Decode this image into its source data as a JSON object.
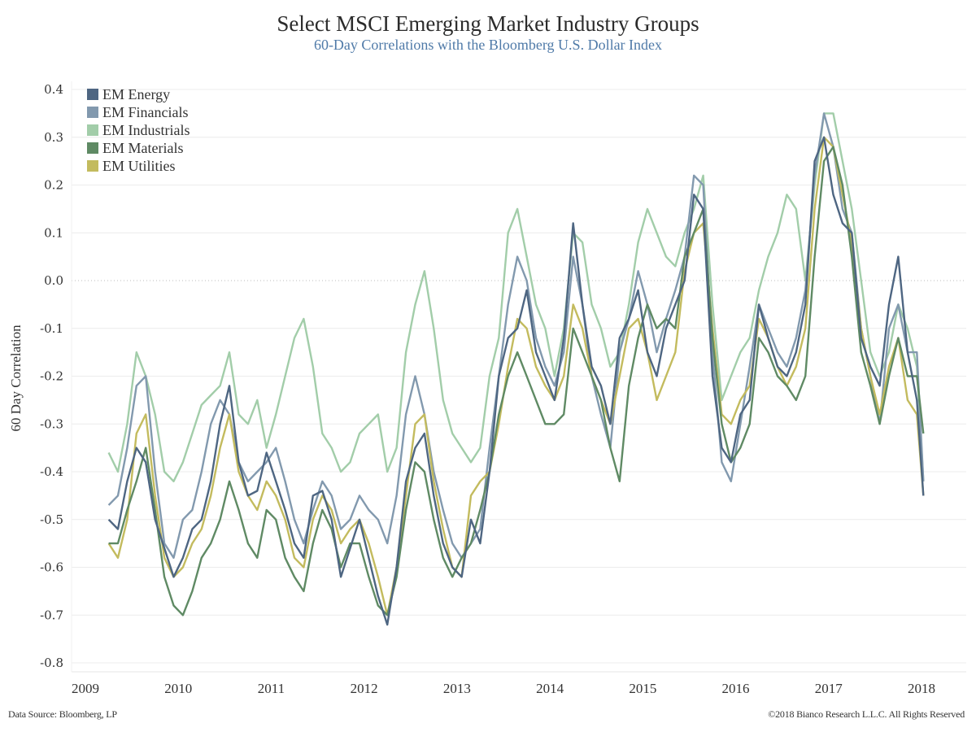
{
  "header": {
    "title": "Select MSCI Emerging Market Industry Groups",
    "subtitle": "60-Day Correlations with the Bloomberg U.S. Dollar Index"
  },
  "footer": {
    "source": "Data Source: Bloomberg, LP",
    "copyright": "©2018 Bianco Research L.L.C. All Rights Reserved"
  },
  "chart_data": {
    "type": "line",
    "title": "Select MSCI Emerging Market Industry Groups",
    "subtitle": "60-Day Correlations with the Bloomberg U.S. Dollar Index",
    "xlabel": "",
    "ylabel": "60 Day Correlation",
    "xlim": [
      2008.9,
      2018.3
    ],
    "ylim": [
      -0.82,
      0.42
    ],
    "x_ticks": [
      2009,
      2010,
      2011,
      2012,
      2013,
      2014,
      2015,
      2016,
      2017,
      2018
    ],
    "x_tick_labels": [
      "2009",
      "2010",
      "2011",
      "2012",
      "2013",
      "2014",
      "2015",
      "2016",
      "2017",
      "2018"
    ],
    "y_ticks": [
      0.4,
      0.3,
      0.2,
      0.1,
      0.0,
      -0.1,
      -0.2,
      -0.3,
      -0.4,
      -0.5,
      -0.6,
      -0.7,
      -0.8
    ],
    "y_tick_labels": [
      "0.4",
      "0.3",
      "0.2",
      "0.1",
      "0.0",
      "-0.1",
      "-0.2",
      "-0.3",
      "-0.4",
      "-0.5",
      "-0.6",
      "-0.7",
      "-0.8"
    ],
    "grid": true,
    "zero_line": "dotted",
    "legend_position": "top-left",
    "x": [
      2009.25,
      2009.35,
      2009.45,
      2009.55,
      2009.65,
      2009.75,
      2009.85,
      2009.95,
      2010.05,
      2010.15,
      2010.25,
      2010.35,
      2010.45,
      2010.55,
      2010.65,
      2010.75,
      2010.85,
      2010.95,
      2011.05,
      2011.15,
      2011.25,
      2011.35,
      2011.45,
      2011.55,
      2011.65,
      2011.75,
      2011.85,
      2011.95,
      2012.05,
      2012.15,
      2012.25,
      2012.35,
      2012.45,
      2012.55,
      2012.65,
      2012.75,
      2012.85,
      2012.95,
      2013.05,
      2013.15,
      2013.25,
      2013.35,
      2013.45,
      2013.55,
      2013.65,
      2013.75,
      2013.85,
      2013.95,
      2014.05,
      2014.15,
      2014.25,
      2014.35,
      2014.45,
      2014.55,
      2014.65,
      2014.75,
      2014.85,
      2014.95,
      2015.05,
      2015.15,
      2015.25,
      2015.35,
      2015.45,
      2015.55,
      2015.65,
      2015.75,
      2015.85,
      2015.95,
      2016.05,
      2016.15,
      2016.25,
      2016.35,
      2016.45,
      2016.55,
      2016.65,
      2016.75,
      2016.85,
      2016.95,
      2017.05,
      2017.15,
      2017.25,
      2017.35,
      2017.45,
      2017.55,
      2017.65,
      2017.75,
      2017.85,
      2017.95,
      2018.02
    ],
    "series": [
      {
        "name": "EM Energy",
        "color": "#4e6682",
        "values": [
          -0.5,
          -0.52,
          -0.42,
          -0.35,
          -0.38,
          -0.5,
          -0.56,
          -0.62,
          -0.58,
          -0.52,
          -0.5,
          -0.42,
          -0.3,
          -0.22,
          -0.38,
          -0.45,
          -0.44,
          -0.36,
          -0.42,
          -0.48,
          -0.55,
          -0.58,
          -0.45,
          -0.44,
          -0.5,
          -0.62,
          -0.56,
          -0.5,
          -0.58,
          -0.66,
          -0.72,
          -0.6,
          -0.42,
          -0.35,
          -0.32,
          -0.45,
          -0.55,
          -0.6,
          -0.62,
          -0.5,
          -0.55,
          -0.4,
          -0.2,
          -0.12,
          -0.1,
          -0.02,
          -0.15,
          -0.2,
          -0.25,
          -0.12,
          0.12,
          -0.05,
          -0.18,
          -0.22,
          -0.3,
          -0.12,
          -0.08,
          -0.02,
          -0.15,
          -0.2,
          -0.1,
          -0.05,
          0.0,
          0.18,
          0.15,
          -0.2,
          -0.35,
          -0.38,
          -0.28,
          -0.25,
          -0.05,
          -0.12,
          -0.18,
          -0.2,
          -0.15,
          -0.05,
          0.25,
          0.3,
          0.18,
          0.12,
          0.1,
          -0.12,
          -0.18,
          -0.22,
          -0.05,
          0.05,
          -0.15,
          -0.25,
          -0.45
        ]
      },
      {
        "name": "EM Financials",
        "color": "#8299ae",
        "values": [
          -0.47,
          -0.45,
          -0.35,
          -0.22,
          -0.2,
          -0.4,
          -0.55,
          -0.58,
          -0.5,
          -0.48,
          -0.4,
          -0.3,
          -0.25,
          -0.28,
          -0.38,
          -0.42,
          -0.4,
          -0.38,
          -0.35,
          -0.42,
          -0.5,
          -0.55,
          -0.48,
          -0.42,
          -0.45,
          -0.52,
          -0.5,
          -0.45,
          -0.48,
          -0.5,
          -0.55,
          -0.45,
          -0.28,
          -0.2,
          -0.28,
          -0.4,
          -0.48,
          -0.55,
          -0.58,
          -0.55,
          -0.52,
          -0.35,
          -0.2,
          -0.05,
          0.05,
          0.0,
          -0.12,
          -0.18,
          -0.22,
          -0.15,
          0.05,
          -0.05,
          -0.2,
          -0.28,
          -0.35,
          -0.15,
          -0.08,
          0.02,
          -0.05,
          -0.15,
          -0.08,
          -0.02,
          0.05,
          0.22,
          0.2,
          -0.15,
          -0.38,
          -0.42,
          -0.3,
          -0.18,
          -0.05,
          -0.1,
          -0.15,
          -0.18,
          -0.12,
          -0.02,
          0.22,
          0.35,
          0.28,
          0.15,
          0.1,
          -0.1,
          -0.2,
          -0.3,
          -0.1,
          -0.05,
          -0.15,
          -0.15,
          -0.42
        ]
      },
      {
        "name": "EM Industrials",
        "color": "#a2cda9",
        "values": [
          -0.36,
          -0.4,
          -0.3,
          -0.15,
          -0.2,
          -0.28,
          -0.4,
          -0.42,
          -0.38,
          -0.32,
          -0.26,
          -0.24,
          -0.22,
          -0.15,
          -0.28,
          -0.3,
          -0.25,
          -0.35,
          -0.28,
          -0.2,
          -0.12,
          -0.08,
          -0.18,
          -0.32,
          -0.35,
          -0.4,
          -0.38,
          -0.32,
          -0.3,
          -0.28,
          -0.4,
          -0.35,
          -0.15,
          -0.05,
          0.02,
          -0.1,
          -0.25,
          -0.32,
          -0.35,
          -0.38,
          -0.35,
          -0.2,
          -0.12,
          0.1,
          0.15,
          0.05,
          -0.05,
          -0.1,
          -0.2,
          -0.1,
          0.1,
          0.08,
          -0.05,
          -0.1,
          -0.18,
          -0.15,
          -0.05,
          0.08,
          0.15,
          0.1,
          0.05,
          0.03,
          0.1,
          0.15,
          0.22,
          -0.05,
          -0.25,
          -0.2,
          -0.15,
          -0.12,
          -0.02,
          0.05,
          0.1,
          0.18,
          0.15,
          0.0,
          0.2,
          0.35,
          0.35,
          0.25,
          0.15,
          0.0,
          -0.15,
          -0.2,
          -0.15,
          -0.05,
          -0.1,
          -0.18,
          -0.42
        ]
      },
      {
        "name": "EM Materials",
        "color": "#5f8a64",
        "values": [
          -0.55,
          -0.55,
          -0.48,
          -0.42,
          -0.35,
          -0.48,
          -0.62,
          -0.68,
          -0.7,
          -0.65,
          -0.58,
          -0.55,
          -0.5,
          -0.42,
          -0.48,
          -0.55,
          -0.58,
          -0.48,
          -0.5,
          -0.58,
          -0.62,
          -0.65,
          -0.55,
          -0.48,
          -0.52,
          -0.6,
          -0.55,
          -0.55,
          -0.62,
          -0.68,
          -0.7,
          -0.62,
          -0.48,
          -0.38,
          -0.4,
          -0.5,
          -0.58,
          -0.62,
          -0.58,
          -0.55,
          -0.48,
          -0.4,
          -0.28,
          -0.2,
          -0.15,
          -0.2,
          -0.25,
          -0.3,
          -0.3,
          -0.28,
          -0.1,
          -0.15,
          -0.2,
          -0.25,
          -0.35,
          -0.42,
          -0.22,
          -0.12,
          -0.05,
          -0.1,
          -0.08,
          -0.1,
          0.05,
          0.1,
          0.15,
          -0.12,
          -0.3,
          -0.38,
          -0.35,
          -0.3,
          -0.12,
          -0.15,
          -0.2,
          -0.22,
          -0.25,
          -0.2,
          0.05,
          0.25,
          0.28,
          0.2,
          0.05,
          -0.15,
          -0.22,
          -0.3,
          -0.2,
          -0.12,
          -0.2,
          -0.2,
          -0.32
        ]
      },
      {
        "name": "EM Utilities",
        "color": "#c3bb5e",
        "values": [
          -0.55,
          -0.58,
          -0.5,
          -0.32,
          -0.28,
          -0.45,
          -0.58,
          -0.62,
          -0.6,
          -0.55,
          -0.52,
          -0.45,
          -0.35,
          -0.28,
          -0.4,
          -0.45,
          -0.48,
          -0.42,
          -0.45,
          -0.5,
          -0.58,
          -0.6,
          -0.5,
          -0.45,
          -0.48,
          -0.55,
          -0.52,
          -0.5,
          -0.55,
          -0.62,
          -0.7,
          -0.6,
          -0.45,
          -0.3,
          -0.28,
          -0.42,
          -0.52,
          -0.6,
          -0.62,
          -0.45,
          -0.42,
          -0.4,
          -0.3,
          -0.18,
          -0.08,
          -0.1,
          -0.18,
          -0.22,
          -0.25,
          -0.2,
          -0.05,
          -0.1,
          -0.2,
          -0.25,
          -0.3,
          -0.2,
          -0.1,
          -0.08,
          -0.15,
          -0.25,
          -0.2,
          -0.15,
          0.02,
          0.1,
          0.12,
          -0.1,
          -0.28,
          -0.3,
          -0.25,
          -0.22,
          -0.08,
          -0.12,
          -0.18,
          -0.22,
          -0.18,
          -0.1,
          0.15,
          0.3,
          0.28,
          0.18,
          0.08,
          -0.1,
          -0.2,
          -0.28,
          -0.18,
          -0.12,
          -0.25,
          -0.28,
          -0.45
        ]
      }
    ]
  }
}
